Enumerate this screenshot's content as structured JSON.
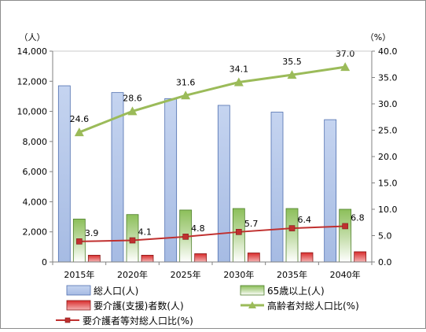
{
  "chart_data": {
    "type": "bar",
    "categories": [
      "2015年",
      "2020年",
      "2025年",
      "2030年",
      "2035年",
      "2040年"
    ],
    "y_left_unit": "（人）",
    "y_right_unit": "（%）",
    "y_left_ticks": [
      "0",
      "2,000",
      "4,000",
      "6,000",
      "8,000",
      "10,000",
      "12,000",
      "14,000"
    ],
    "y_right_ticks": [
      "0.0",
      "5.0",
      "10.0",
      "15.0",
      "20.0",
      "25.0",
      "30.0",
      "35.0",
      "40.0"
    ],
    "ylim_left": [
      0,
      14000
    ],
    "ylim_right": [
      0,
      40
    ],
    "grid": false,
    "legend_position": "bottom",
    "series": [
      {
        "name": "総人口(人)",
        "type": "bar",
        "axis": "left",
        "color": "#b8c9ea",
        "values": [
          11700,
          11250,
          10850,
          10400,
          9950,
          9450
        ]
      },
      {
        "name": "65歳以上(人)",
        "type": "bar",
        "axis": "left",
        "color": "#8cbf5a",
        "values": [
          2850,
          3150,
          3450,
          3550,
          3550,
          3500
        ]
      },
      {
        "name": "要介護(支援)者数(人)",
        "type": "bar",
        "axis": "left",
        "color": "#d82c2c",
        "values": [
          450,
          450,
          550,
          600,
          620,
          680
        ]
      },
      {
        "name": "高齢者対総人口比(%)",
        "type": "line",
        "axis": "right",
        "color": "#9bbb59",
        "marker": "triangle",
        "values": [
          24.6,
          28.6,
          31.6,
          34.1,
          35.5,
          37.0
        ],
        "labels": [
          "24.6",
          "28.6",
          "31.6",
          "34.1",
          "35.5",
          "37.0"
        ]
      },
      {
        "name": "要介護者等対総人口比(%)",
        "type": "line",
        "axis": "right",
        "color": "#c0302f",
        "marker": "square",
        "values": [
          3.9,
          4.1,
          4.8,
          5.7,
          6.4,
          6.8
        ],
        "labels": [
          "3.9",
          "4.1",
          "4.8",
          "5.7",
          "6.4",
          "6.8"
        ]
      }
    ]
  }
}
